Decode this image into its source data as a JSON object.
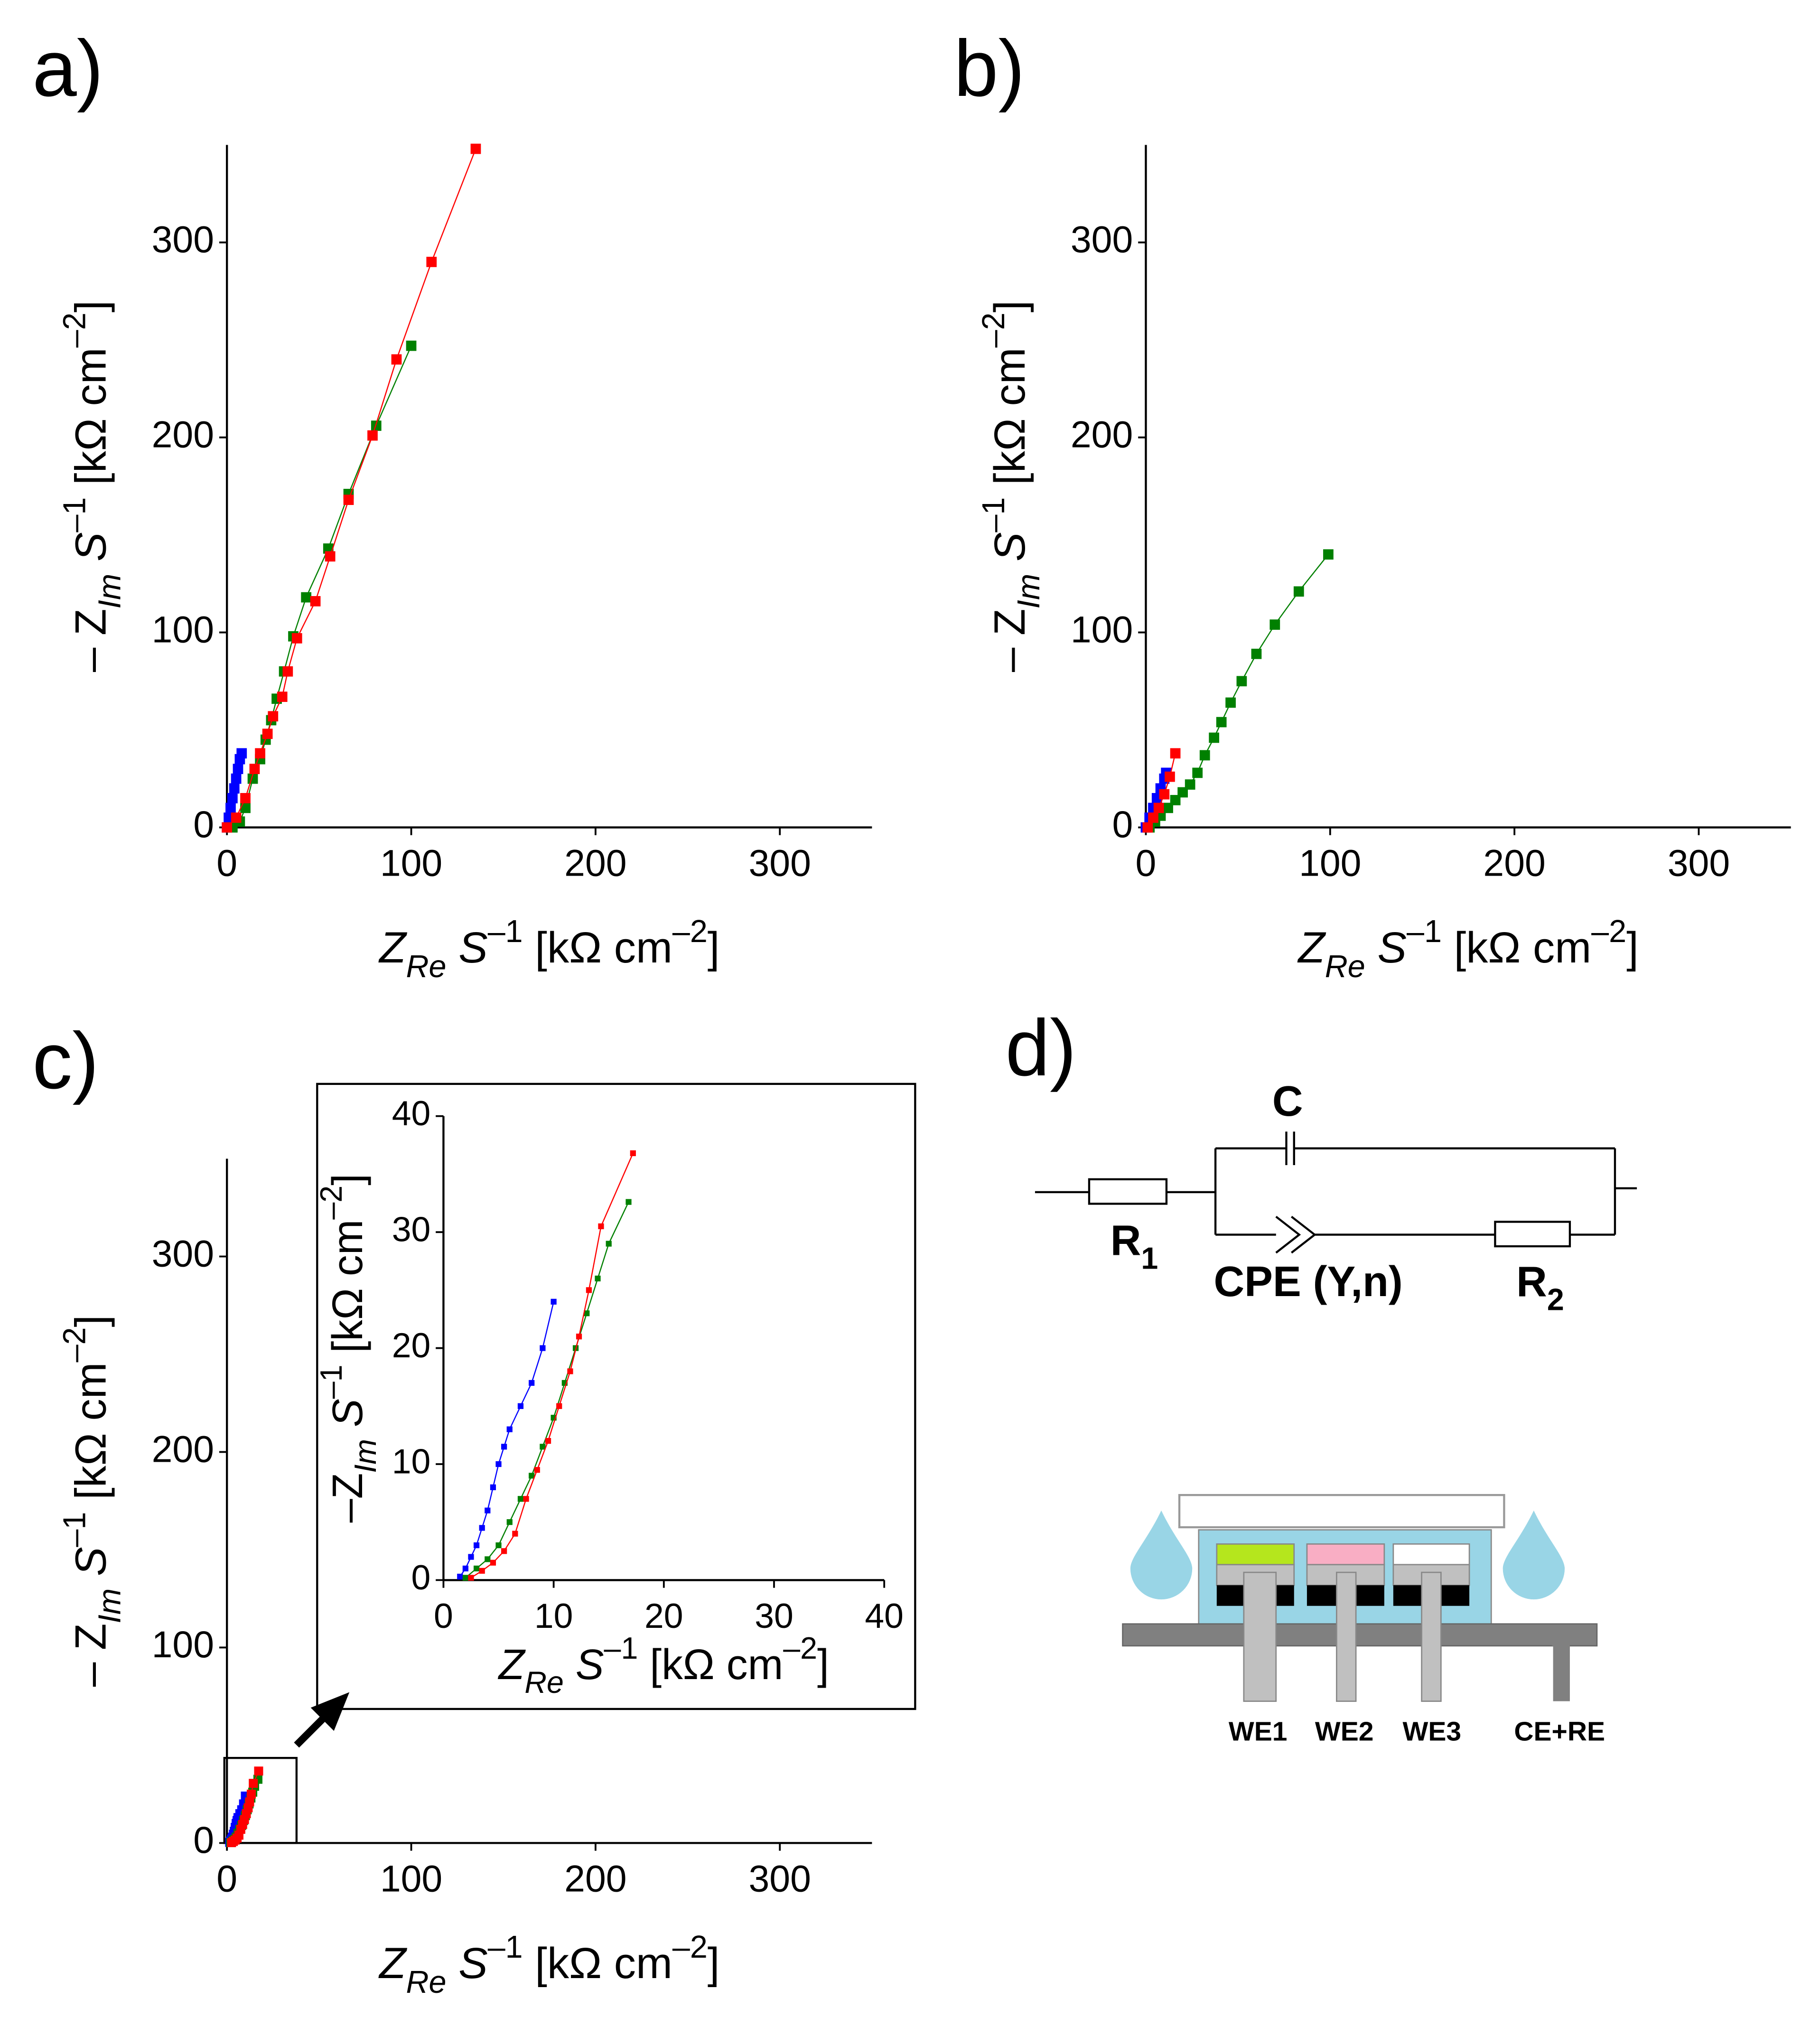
{
  "chart_data": [
    {
      "type": "line",
      "label": "a)",
      "xlim": [
        0,
        350
      ],
      "ylim": [
        0,
        350
      ],
      "xticks": [
        0,
        100,
        200,
        300
      ],
      "yticks": [
        0,
        100,
        200,
        300
      ],
      "xlabel": [
        {
          "text": "Z",
          "style": "italic"
        },
        {
          "text": "Re",
          "style": "italic-sub"
        },
        {
          "text": " S",
          "style": "italic"
        },
        {
          "text": "–1",
          "style": "sup"
        },
        {
          "text": " [kΩ cm",
          "style": "normal"
        },
        {
          "text": "–2",
          "style": "sup"
        },
        {
          "text": "]",
          "style": "normal"
        }
      ],
      "ylabel": [
        {
          "text": "– Z",
          "style": "normal"
        },
        {
          "text": "Im",
          "style": "italic-sub"
        },
        {
          "text": " S",
          "style": "italic"
        },
        {
          "text": "–1",
          "style": "sup"
        },
        {
          "text": " [kΩ cm",
          "style": "normal"
        },
        {
          "text": "–2",
          "style": "sup"
        },
        {
          "text": "]",
          "style": "normal"
        }
      ],
      "series": [
        {
          "color": "#0000ff",
          "x": [
            0,
            1,
            2,
            3,
            4,
            5,
            6,
            7,
            8
          ],
          "values": [
            0,
            5,
            10,
            15,
            20,
            25,
            30,
            35,
            38
          ]
        },
        {
          "color": "#008000",
          "x": [
            3,
            7,
            10,
            14,
            18,
            21,
            24,
            27,
            31,
            36,
            43,
            55,
            66,
            81,
            100
          ],
          "values": [
            0,
            3,
            10,
            25,
            35,
            45,
            55,
            66,
            80,
            98,
            118,
            143,
            171,
            206,
            247
          ]
        },
        {
          "color": "#ff0000",
          "x": [
            0,
            5,
            10,
            15,
            18,
            22,
            25,
            30,
            33,
            38,
            48,
            56,
            66,
            79,
            92,
            111,
            135
          ],
          "values": [
            0,
            5,
            15,
            30,
            38,
            48,
            57,
            67,
            80,
            97,
            116,
            139,
            168,
            201,
            240,
            290,
            348
          ]
        }
      ]
    },
    {
      "type": "line",
      "label": "b)",
      "xlim": [
        0,
        350
      ],
      "ylim": [
        0,
        350
      ],
      "xticks": [
        0,
        100,
        200,
        300
      ],
      "yticks": [
        0,
        100,
        200,
        300
      ],
      "xlabel": [
        {
          "text": "Z",
          "style": "italic"
        },
        {
          "text": "Re",
          "style": "italic-sub"
        },
        {
          "text": " S",
          "style": "italic"
        },
        {
          "text": "–1",
          "style": "sup"
        },
        {
          "text": " [kΩ cm",
          "style": "normal"
        },
        {
          "text": "–2",
          "style": "sup"
        },
        {
          "text": "]",
          "style": "normal"
        }
      ],
      "ylabel": [
        {
          "text": "– Z",
          "style": "normal"
        },
        {
          "text": "Im",
          "style": "italic-sub"
        },
        {
          "text": " S",
          "style": "italic"
        },
        {
          "text": "–1",
          "style": "sup"
        },
        {
          "text": " [kΩ cm",
          "style": "normal"
        },
        {
          "text": "–2",
          "style": "sup"
        },
        {
          "text": "]",
          "style": "normal"
        }
      ],
      "series": [
        {
          "color": "#008000",
          "x": [
            2,
            5,
            8,
            12,
            16,
            20,
            24,
            28,
            32,
            37,
            41,
            46,
            52,
            60,
            70,
            83,
            99
          ],
          "values": [
            0,
            3,
            6,
            10,
            14,
            18,
            22,
            28,
            37,
            46,
            54,
            64,
            75,
            89,
            104,
            121,
            140
          ]
        },
        {
          "color": "#0000ff",
          "x": [
            0,
            2,
            4,
            6,
            8,
            10,
            11
          ],
          "values": [
            0,
            5,
            10,
            15,
            20,
            25,
            28
          ]
        },
        {
          "color": "#ff0000",
          "x": [
            1,
            4,
            7,
            10,
            13,
            16
          ],
          "values": [
            0,
            5,
            10,
            17,
            26,
            38
          ]
        }
      ]
    },
    {
      "type": "line",
      "label": "c)",
      "xlim": [
        0,
        350
      ],
      "ylim": [
        0,
        350
      ],
      "xticks": [
        0,
        100,
        200,
        300
      ],
      "yticks": [
        0,
        100,
        200,
        300
      ],
      "xlabel": [
        {
          "text": "Z",
          "style": "italic"
        },
        {
          "text": "Re",
          "style": "italic-sub"
        },
        {
          "text": " S",
          "style": "italic"
        },
        {
          "text": "–1",
          "style": "sup"
        },
        {
          "text": " [kΩ cm",
          "style": "normal"
        },
        {
          "text": "–2",
          "style": "sup"
        },
        {
          "text": "]",
          "style": "normal"
        }
      ],
      "ylabel": [
        {
          "text": "– Z",
          "style": "normal"
        },
        {
          "text": "Im",
          "style": "italic-sub"
        },
        {
          "text": " S",
          "style": "italic"
        },
        {
          "text": "–1",
          "style": "sup"
        },
        {
          "text": " [kΩ cm",
          "style": "normal"
        },
        {
          "text": "–2",
          "style": "sup"
        },
        {
          "text": "]",
          "style": "normal"
        }
      ],
      "series": [
        {
          "color": "#0000ff",
          "x": [
            1.5,
            2,
            2.5,
            3,
            3.5,
            4,
            4.5,
            5,
            5.5,
            6,
            7,
            8,
            9,
            10
          ],
          "values": [
            0.3,
            1,
            2,
            3,
            4.5,
            6,
            8,
            10,
            11.5,
            13,
            15,
            17,
            20,
            24
          ]
        },
        {
          "color": "#008000",
          "x": [
            2,
            3,
            4,
            5,
            6,
            7,
            8,
            9,
            10,
            11,
            12,
            13,
            14,
            15,
            16.8
          ],
          "values": [
            0.2,
            1,
            1.8,
            3,
            5,
            7,
            9,
            11.5,
            14,
            17,
            20,
            23,
            26,
            29,
            32.6
          ]
        },
        {
          "color": "#ff0000",
          "x": [
            2.5,
            3.5,
            4.5,
            5.5,
            6.5,
            7.5,
            8.5,
            9.5,
            10.5,
            11.5,
            12.3,
            13.2,
            14.3,
            17.2
          ],
          "values": [
            0.2,
            0.8,
            1.5,
            2.5,
            4,
            7,
            9.5,
            12,
            15,
            18,
            21,
            25,
            30.5,
            36.8
          ]
        }
      ]
    },
    {
      "type": "line",
      "xlim": [
        0,
        40
      ],
      "ylim": [
        0,
        40
      ],
      "xticks": [
        0,
        10,
        20,
        30,
        40
      ],
      "yticks": [
        0,
        10,
        20,
        30,
        40
      ],
      "xlabel": [
        {
          "text": "Z",
          "style": "italic"
        },
        {
          "text": "Re",
          "style": "italic-sub"
        },
        {
          "text": " S",
          "style": "italic"
        },
        {
          "text": "–1",
          "style": "sup"
        },
        {
          "text": " [kΩ cm",
          "style": "normal"
        },
        {
          "text": "–2",
          "style": "sup"
        },
        {
          "text": "]",
          "style": "normal"
        }
      ],
      "ylabel": [
        {
          "text": "–Z",
          "style": "normal"
        },
        {
          "text": "Im",
          "style": "italic-sub"
        },
        {
          "text": " S",
          "style": "italic"
        },
        {
          "text": "–1",
          "style": "sup"
        },
        {
          "text": " [kΩ cm",
          "style": "normal"
        },
        {
          "text": "–2",
          "style": "sup"
        },
        {
          "text": "]",
          "style": "normal"
        }
      ],
      "series": [
        {
          "color": "#0000ff",
          "x": [
            1.5,
            2,
            2.5,
            3,
            3.5,
            4,
            4.5,
            5,
            5.5,
            6,
            7,
            8,
            9,
            10
          ],
          "values": [
            0.3,
            1,
            2,
            3,
            4.5,
            6,
            8,
            10,
            11.5,
            13,
            15,
            17,
            20,
            24
          ]
        },
        {
          "color": "#008000",
          "x": [
            2,
            3,
            4,
            5,
            6,
            7,
            8,
            9,
            10,
            11,
            12,
            13,
            14,
            15,
            16.8
          ],
          "values": [
            0.2,
            1,
            1.8,
            3,
            5,
            7,
            9,
            11.5,
            14,
            17,
            20,
            23,
            26,
            29,
            32.6
          ]
        },
        {
          "color": "#ff0000",
          "x": [
            2.5,
            3.5,
            4.5,
            5.5,
            6.5,
            7.5,
            8.5,
            9.5,
            10.5,
            11.5,
            12.3,
            13.2,
            14.3,
            17.2
          ],
          "values": [
            0.2,
            0.8,
            1.5,
            2.5,
            4,
            7,
            9.5,
            12,
            15,
            18,
            21,
            25,
            30.5,
            36.8
          ]
        }
      ]
    }
  ],
  "diagram": {
    "label": "d)",
    "capacitor": "C",
    "r1": {
      "text": "R",
      "sub": "1"
    },
    "cpe": "CPE (Y,n)",
    "r2": {
      "text": "R",
      "sub": "2"
    },
    "electrodes": [
      "WE1",
      "WE2",
      "WE3",
      "CE+RE"
    ]
  }
}
